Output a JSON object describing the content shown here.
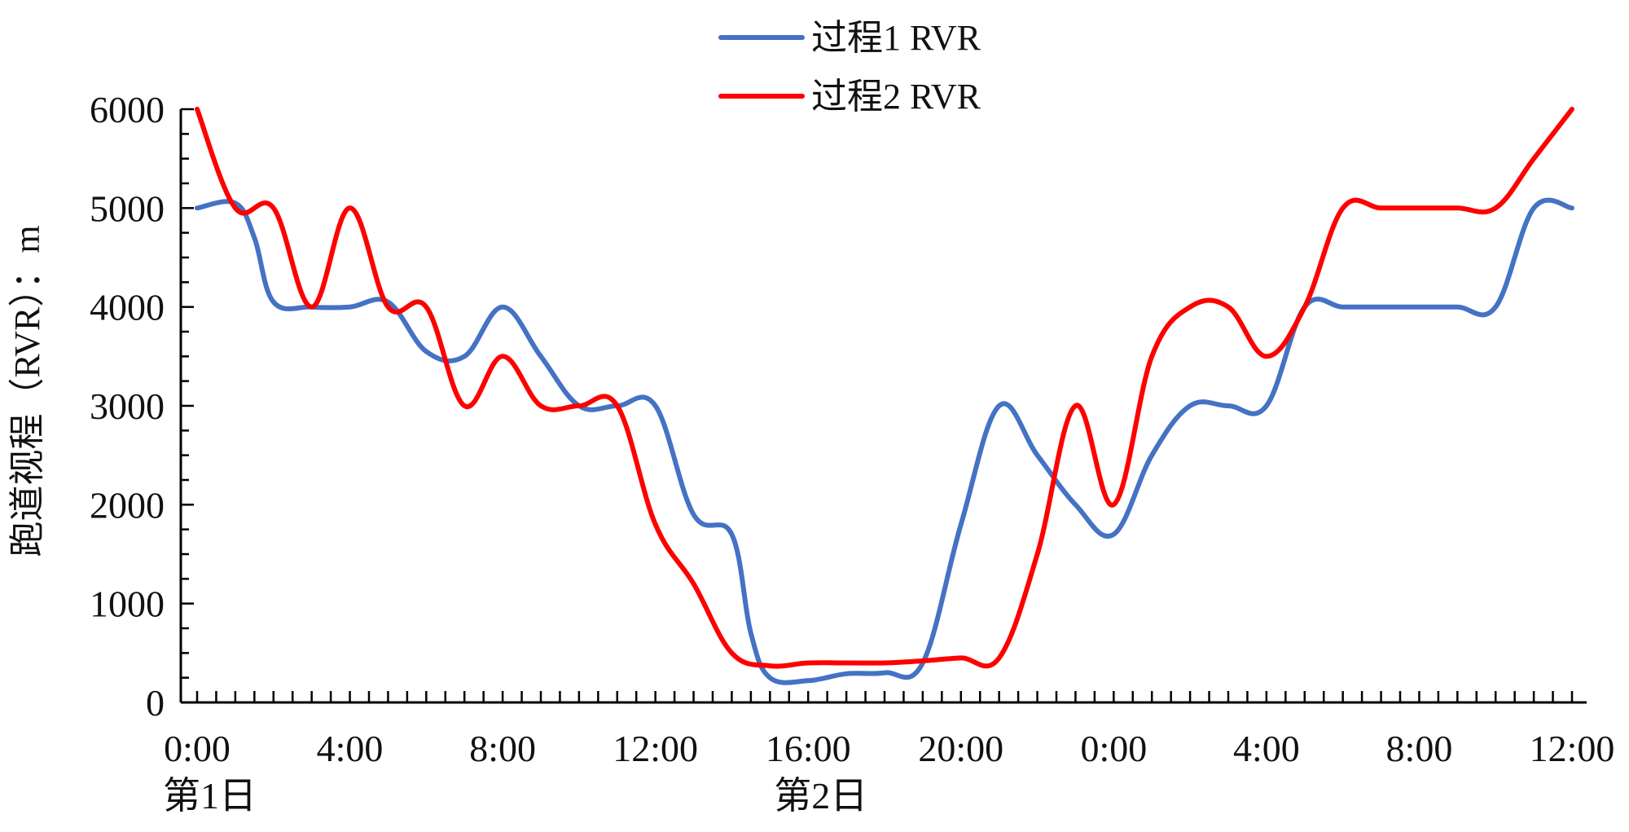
{
  "chart_data": {
    "type": "line",
    "title": "",
    "xlabel": "",
    "ylabel": "跑道视程（RVR）：m",
    "ylim": [
      0,
      6000
    ],
    "y_ticks": [
      0,
      1000,
      2000,
      3000,
      4000,
      5000,
      6000
    ],
    "xlim": [
      0,
      36
    ],
    "x_unit": "hours from 0:00 of day 1",
    "x_ticks": [
      {
        "x": 0,
        "label": "0:00"
      },
      {
        "x": 4,
        "label": "4:00"
      },
      {
        "x": 8,
        "label": "8:00"
      },
      {
        "x": 12,
        "label": "12:00"
      },
      {
        "x": 16,
        "label": "16:00"
      },
      {
        "x": 20,
        "label": "20:00"
      },
      {
        "x": 24,
        "label": "0:00"
      },
      {
        "x": 28,
        "label": "4:00"
      },
      {
        "x": 32,
        "label": "8:00"
      },
      {
        "x": 36,
        "label": "12:00"
      }
    ],
    "day_labels": [
      {
        "x": 0,
        "label": "第1日"
      },
      {
        "x": 16,
        "label": "第2日"
      }
    ],
    "minor_tick_step": 0.5,
    "grid": false,
    "legend_position": "top-center",
    "series": [
      {
        "name": "过程1 RVR",
        "color": "#4472c4",
        "points": [
          [
            0,
            5000
          ],
          [
            1,
            5050
          ],
          [
            1.5,
            4700
          ],
          [
            2,
            4050
          ],
          [
            3,
            4000
          ],
          [
            4,
            4000
          ],
          [
            5,
            4050
          ],
          [
            6,
            3550
          ],
          [
            7,
            3500
          ],
          [
            8,
            4000
          ],
          [
            9,
            3500
          ],
          [
            10,
            3000
          ],
          [
            11,
            3000
          ],
          [
            12,
            3000
          ],
          [
            13,
            1900
          ],
          [
            14,
            1700
          ],
          [
            14.5,
            700
          ],
          [
            15,
            250
          ],
          [
            16,
            220
          ],
          [
            17,
            290
          ],
          [
            18,
            300
          ],
          [
            19,
            400
          ],
          [
            20,
            1800
          ],
          [
            21,
            3000
          ],
          [
            22,
            2500
          ],
          [
            23,
            2000
          ],
          [
            24,
            1700
          ],
          [
            25,
            2500
          ],
          [
            26,
            3000
          ],
          [
            27,
            3000
          ],
          [
            28,
            3000
          ],
          [
            29,
            4000
          ],
          [
            30,
            4000
          ],
          [
            31,
            4000
          ],
          [
            32,
            4000
          ],
          [
            33,
            4000
          ],
          [
            34,
            4000
          ],
          [
            35,
            5000
          ],
          [
            36,
            5000
          ]
        ]
      },
      {
        "name": "过程2 RVR",
        "color": "#ff0000",
        "points": [
          [
            0,
            6000
          ],
          [
            1,
            5000
          ],
          [
            2,
            5000
          ],
          [
            3,
            4000
          ],
          [
            4,
            5000
          ],
          [
            5,
            4000
          ],
          [
            6,
            4000
          ],
          [
            7,
            3000
          ],
          [
            8,
            3500
          ],
          [
            9,
            3000
          ],
          [
            10,
            3000
          ],
          [
            11,
            3000
          ],
          [
            12,
            1800
          ],
          [
            13,
            1200
          ],
          [
            14,
            500
          ],
          [
            15,
            370
          ],
          [
            16,
            400
          ],
          [
            17,
            400
          ],
          [
            18,
            400
          ],
          [
            19,
            420
          ],
          [
            20,
            450
          ],
          [
            21,
            450
          ],
          [
            22,
            1500
          ],
          [
            23,
            3000
          ],
          [
            24,
            2000
          ],
          [
            25,
            3500
          ],
          [
            26,
            4000
          ],
          [
            27,
            4000
          ],
          [
            28,
            3500
          ],
          [
            29,
            4000
          ],
          [
            30,
            5000
          ],
          [
            31,
            5000
          ],
          [
            32,
            5000
          ],
          [
            33,
            5000
          ],
          [
            34,
            5000
          ],
          [
            35,
            5500
          ],
          [
            36,
            6000
          ]
        ]
      }
    ]
  }
}
